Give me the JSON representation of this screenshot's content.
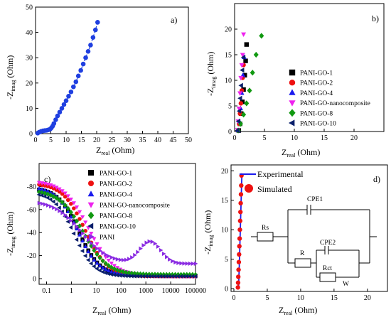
{
  "chart_data": [
    {
      "type": "scatter",
      "panel_label": "a)",
      "xlabel_main": "Z",
      "xlabel_sub": "real",
      "xlabel_unit": " (Ohm)",
      "ylabel_main": "-Z",
      "ylabel_sub": "imag",
      "ylabel_unit": " (Ohm)",
      "xlim": [
        0,
        50
      ],
      "ylim": [
        0,
        50
      ],
      "xticks": [
        0,
        5,
        10,
        15,
        20,
        25,
        30,
        35,
        40,
        45,
        50
      ],
      "yticks": [
        0,
        10,
        20,
        30,
        40,
        50
      ],
      "series": [
        {
          "color": "#1f3fe0",
          "marker": "circle",
          "line": "dash",
          "x": [
            0.7,
            1.2,
            1.8,
            2.4,
            3.0,
            3.6,
            4.2,
            4.8,
            5.2,
            5.6,
            6.0,
            6.6,
            7.2,
            7.9,
            8.6,
            9.3,
            10.0,
            10.8,
            11.6,
            12.4,
            13.2,
            14.0,
            14.8,
            15.6,
            16.4,
            17.2,
            18.0,
            18.8,
            19.6,
            20.3
          ],
          "y": [
            0.2,
            0.6,
            0.9,
            1.1,
            1.2,
            1.3,
            1.5,
            1.8,
            2.3,
            3.0,
            4.0,
            5.5,
            7.0,
            8.5,
            10.0,
            11.5,
            13.0,
            14.8,
            16.5,
            18.5,
            20.5,
            22.8,
            25.0,
            27.5,
            30.0,
            32.5,
            35.0,
            38.0,
            41.0,
            44.0
          ]
        }
      ]
    },
    {
      "type": "scatter",
      "panel_label": "b)",
      "xlabel_main": "Z",
      "xlabel_sub": "real",
      "xlabel_unit": " (Ohm)",
      "ylabel_main": "-Z",
      "ylabel_sub": "imag",
      "ylabel_unit": " (Ohm)",
      "xlim": [
        0,
        25
      ],
      "ylim": [
        0,
        25
      ],
      "xticks": [
        0,
        5,
        10,
        15,
        20
      ],
      "yticks": [
        0,
        5,
        10,
        15,
        20
      ],
      "legend_position": "right",
      "series": [
        {
          "name": "PANI-GO-1",
          "color": "#000000",
          "marker": "square",
          "x": [
            0.7,
            0.9,
            1.1,
            1.3,
            1.5,
            1.7,
            1.85,
            2.0
          ],
          "y": [
            0.2,
            1.5,
            3.5,
            5.8,
            8.2,
            11.0,
            13.8,
            17.0
          ]
        },
        {
          "name": "PANI-GO-2",
          "color": "#ee1111",
          "marker": "circle",
          "x": [
            0.6,
            0.75,
            0.9,
            1.05,
            1.2,
            1.35,
            1.5
          ],
          "y": [
            0.2,
            1.5,
            3.5,
            5.5,
            8.0,
            10.5,
            13.0
          ]
        },
        {
          "name": "PANI-GO-4",
          "color": "#1a1aee",
          "marker": "triangle",
          "x": [
            0.6,
            0.8,
            1.0,
            1.2,
            1.4,
            1.6
          ],
          "y": [
            0.2,
            2.0,
            4.5,
            7.5,
            11.0,
            14.5
          ]
        },
        {
          "name": "PANI-GO-nanocomposite",
          "color": "#ee22ee",
          "marker": "triangle-down",
          "x": [
            0.5,
            0.6,
            0.75,
            0.9,
            1.05,
            1.2,
            1.35,
            1.5
          ],
          "y": [
            0.3,
            2.0,
            4.5,
            7.5,
            10.5,
            13.0,
            15.0,
            19.0
          ]
        },
        {
          "name": "PANI-GO-8",
          "color": "#119911",
          "marker": "diamond",
          "x": [
            0.6,
            1.0,
            1.5,
            2.0,
            2.5,
            3.0,
            3.6,
            4.5
          ],
          "y": [
            0.2,
            1.5,
            3.3,
            5.5,
            8.0,
            11.5,
            15.0,
            18.7
          ]
        },
        {
          "name": "PANI-GO-10",
          "color": "#0a1f6b",
          "marker": "triangle-left",
          "x": [
            0.5,
            0.65,
            0.8,
            0.95,
            1.1,
            1.3,
            1.5
          ],
          "y": [
            0.2,
            2.0,
            4.0,
            6.5,
            9.0,
            12.0,
            14.5
          ]
        }
      ]
    },
    {
      "type": "scatter",
      "panel_label": "c)",
      "xlabel_main": "Z",
      "xlabel_sub": "real",
      "xlabel_unit": " (Ohm)",
      "ylabel_main": "-Z",
      "ylabel_sub": "imag",
      "ylabel_unit": " (Ohm)",
      "xscale": "log",
      "xlim": [
        0.05,
        100000
      ],
      "ylim": [
        0,
        -100
      ],
      "xticks": [
        0.1,
        1,
        10,
        100,
        1000,
        10000,
        100000
      ],
      "xtick_labels": [
        "0.1",
        "1",
        "10",
        "100",
        "1000",
        "10000",
        "100000"
      ],
      "yticks": [
        0,
        -20,
        -40,
        -60,
        -80
      ],
      "legend_position": "top-center",
      "series": [
        {
          "name": "PANI-GO-1",
          "color": "#000000",
          "marker": "square",
          "y0": -79,
          "mid": 2.0,
          "width": 0.42,
          "tail": -2.5
        },
        {
          "name": "PANI-GO-2",
          "color": "#ee1111",
          "marker": "circle",
          "y0": -83,
          "mid": 3.5,
          "width": 0.45,
          "tail": -2.0
        },
        {
          "name": "PANI-GO-4",
          "color": "#1a1aee",
          "marker": "triangle",
          "y0": -80,
          "mid": 1.8,
          "width": 0.42,
          "tail": -3.0
        },
        {
          "name": "PANI-GO-nanocomposite",
          "color": "#ee22ee",
          "marker": "triangle-down",
          "y0": -85,
          "mid": 5.0,
          "width": 0.5,
          "tail": -2.0
        },
        {
          "name": "PANI-GO-8",
          "color": "#119911",
          "marker": "diamond",
          "y0": -77,
          "mid": 3.0,
          "width": 0.48,
          "tail": -3.5
        },
        {
          "name": "PANI-GO-10",
          "color": "#0a1f6b",
          "marker": "triangle-left",
          "y0": -75,
          "mid": 1.3,
          "width": 0.4,
          "tail": -2.0
        },
        {
          "name": "PANI",
          "color": "#8a2be2",
          "marker": "triangle-right",
          "y0": -68,
          "mid": 2.5,
          "width": 0.55,
          "tail": -13.0,
          "bump_amp": -19,
          "bump_center": 1500,
          "bump_width": 0.6
        }
      ]
    },
    {
      "type": "scatter",
      "panel_label": "d)",
      "xlabel_main": "Z",
      "xlabel_sub": "real",
      "xlabel_unit": " (Ohm)",
      "ylabel_main": "-Z",
      "ylabel_sub": "imag",
      "ylabel_unit": " (Ohm)",
      "xlim": [
        0,
        23
      ],
      "ylim": [
        0,
        21
      ],
      "xticks": [
        0,
        5,
        10,
        15,
        20
      ],
      "yticks": [
        0,
        5,
        10,
        15,
        20
      ],
      "legend_position": "top-left",
      "series": [
        {
          "name": "Experimental",
          "color": "#1a1aee",
          "marker": "line",
          "x": [
            0.7,
            0.8,
            0.9,
            1.0,
            1.1,
            1.2
          ],
          "y": [
            0.1,
            3.5,
            7.5,
            11.5,
            15.5,
            19.5
          ]
        },
        {
          "name": "Simulated",
          "color": "#ee1111",
          "marker": "circle",
          "x": [
            0.6,
            0.63,
            0.66,
            0.7,
            0.74,
            0.78,
            0.82,
            0.86,
            0.9,
            0.94,
            0.98,
            1.02,
            1.06,
            1.1,
            1.14
          ],
          "y": [
            0.2,
            1.0,
            2.0,
            3.2,
            4.5,
            5.8,
            7.2,
            8.5,
            10.0,
            11.5,
            13.0,
            14.5,
            16.0,
            17.5,
            19.2
          ]
        }
      ],
      "circuit_labels": {
        "cpe1": "CPE1",
        "rs": "Rs",
        "r": "R",
        "cpe2": "CPE2",
        "rct": "Rct",
        "w": "W"
      }
    }
  ]
}
